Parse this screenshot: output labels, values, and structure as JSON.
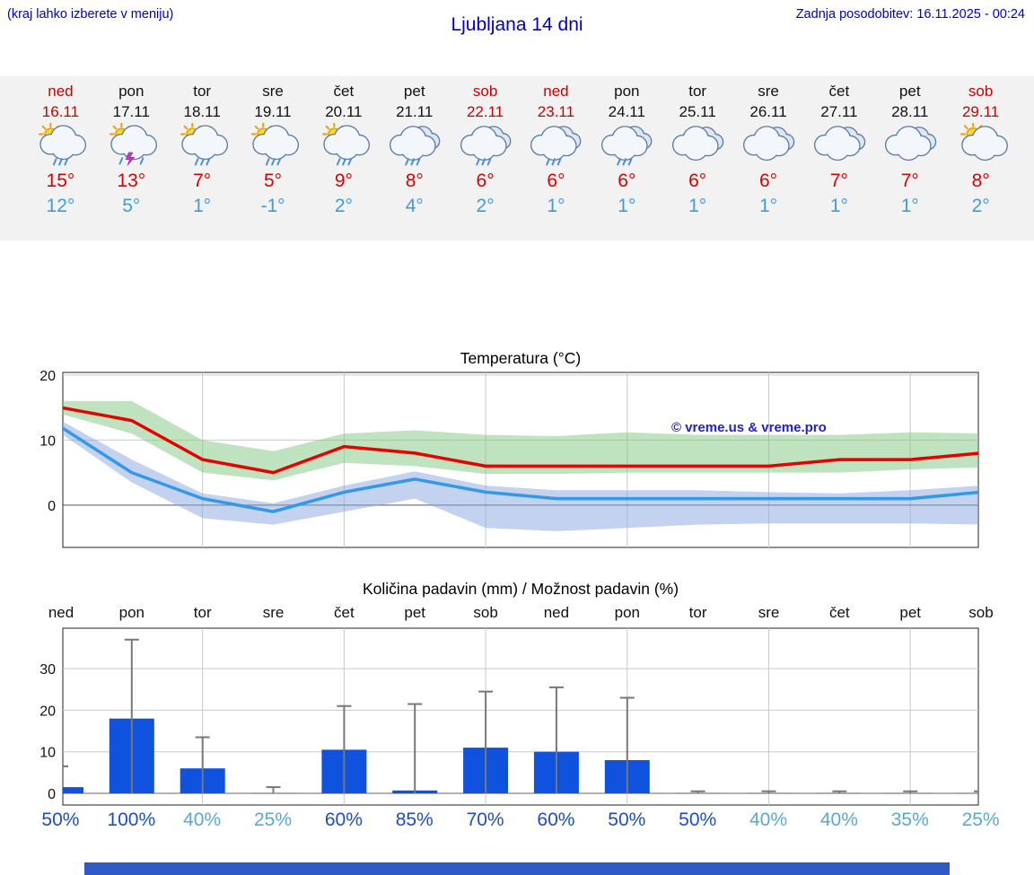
{
  "header": {
    "left_note": "(kraj lahko izberete v meniju)",
    "title": "Ljubljana 14 dni",
    "last_update": "Zadnja posodobitev: 16.11.2025 - 00:24"
  },
  "colors": {
    "header_blue": "#0000cc",
    "weekend_red": "#cc0000",
    "weekday_text": "#111111",
    "high_red": "#dd0000",
    "low_blue": "#3e9be0",
    "prob_high": "#1c4fc4",
    "prob_low": "#58a8d8",
    "bar_blue": "#0f52dd",
    "temp_max_line": "#e60000",
    "temp_min_line": "#3399e6",
    "footer_blue": "#2e5ac8"
  },
  "days": [
    {
      "name": "ned",
      "date": "16.11",
      "weekend": true,
      "icon": "sun-rain",
      "high": "15°",
      "low": "12°"
    },
    {
      "name": "pon",
      "date": "17.11",
      "weekend": false,
      "icon": "sun-storm",
      "high": "13°",
      "low": "5°"
    },
    {
      "name": "tor",
      "date": "18.11",
      "weekend": false,
      "icon": "sun-rain",
      "high": "7°",
      "low": "1°"
    },
    {
      "name": "sre",
      "date": "19.11",
      "weekend": false,
      "icon": "sun-rain",
      "high": "5°",
      "low": "-1°"
    },
    {
      "name": "čet",
      "date": "20.11",
      "weekend": false,
      "icon": "sun-rain",
      "high": "9°",
      "low": "2°"
    },
    {
      "name": "pet",
      "date": "21.11",
      "weekend": false,
      "icon": "cloud-rain",
      "high": "8°",
      "low": "4°"
    },
    {
      "name": "sob",
      "date": "22.11",
      "weekend": true,
      "icon": "cloud-rain",
      "high": "6°",
      "low": "2°"
    },
    {
      "name": "ned",
      "date": "23.11",
      "weekend": true,
      "icon": "cloud-rain",
      "high": "6°",
      "low": "1°"
    },
    {
      "name": "pon",
      "date": "24.11",
      "weekend": false,
      "icon": "cloud-rain",
      "high": "6°",
      "low": "1°"
    },
    {
      "name": "tor",
      "date": "25.11",
      "weekend": false,
      "icon": "cloud",
      "high": "6°",
      "low": "1°"
    },
    {
      "name": "sre",
      "date": "26.11",
      "weekend": false,
      "icon": "cloud",
      "high": "6°",
      "low": "1°"
    },
    {
      "name": "čet",
      "date": "27.11",
      "weekend": false,
      "icon": "cloud",
      "high": "7°",
      "low": "1°"
    },
    {
      "name": "pet",
      "date": "28.11",
      "weekend": false,
      "icon": "cloud",
      "high": "7°",
      "low": "1°"
    },
    {
      "name": "sob",
      "date": "29.11",
      "weekend": true,
      "icon": "sun-cloud",
      "high": "8°",
      "low": "2°"
    }
  ],
  "chart_data": [
    {
      "type": "line",
      "title": "Temperatura (°C)",
      "categories": [
        "ned",
        "pon",
        "tor",
        "sre",
        "čet",
        "pet",
        "sob",
        "ned",
        "pon",
        "tor",
        "sre",
        "čet",
        "pet",
        "sob"
      ],
      "series": [
        {
          "name": "max-temperature",
          "color": "#e60000",
          "values": [
            15,
            13,
            7,
            5,
            9,
            8,
            6,
            6,
            6,
            6,
            6,
            7,
            7,
            8
          ]
        },
        {
          "name": "min-temperature",
          "color": "#3399e6",
          "values": [
            12,
            5,
            1,
            -1,
            2,
            4,
            2,
            1,
            1,
            1,
            1,
            1,
            1,
            2
          ]
        }
      ],
      "bands": [
        {
          "name": "max-temperature-range",
          "color": "#7ec87e",
          "upper": [
            16,
            16,
            10,
            8.3,
            11,
            11.5,
            10.8,
            10.6,
            11.2,
            10.8,
            10.8,
            10.8,
            11.2,
            11
          ],
          "lower": [
            14,
            11,
            5,
            3.8,
            6.5,
            6,
            4.8,
            4.8,
            5,
            5,
            5,
            5,
            5.5,
            5.8
          ]
        },
        {
          "name": "min-temperature-range",
          "color": "#88a8e0",
          "upper": [
            13,
            7,
            1.8,
            0.3,
            3,
            5.2,
            3,
            2.3,
            2.3,
            2.3,
            2,
            1.8,
            2.3,
            3
          ],
          "lower": [
            11,
            3.5,
            -2,
            -3,
            -1,
            1,
            -3.5,
            -4,
            -3.5,
            -3,
            -2.8,
            -2.8,
            -2.8,
            -3
          ]
        }
      ],
      "ylim": [
        -6.5,
        20.4
      ],
      "yticks": [
        0,
        10,
        20
      ],
      "grid": true,
      "watermark": "© vreme.us & vreme.pro"
    },
    {
      "type": "bar",
      "title": "Količina padavin (mm) / Možnost padavin (%)",
      "categories": [
        "ned",
        "pon",
        "tor",
        "sre",
        "čet",
        "pet",
        "sob",
        "ned",
        "pon",
        "tor",
        "sre",
        "čet",
        "pet",
        "sob"
      ],
      "values": [
        1.5,
        18,
        6,
        0.1,
        10.5,
        0.7,
        11,
        10,
        8,
        0.1,
        0.1,
        0.1,
        0.1,
        0.1
      ],
      "whisker_high": [
        6.5,
        37,
        13.5,
        1.5,
        21,
        21.5,
        24.5,
        25.5,
        23,
        0.5,
        0.5,
        0.5,
        0.5,
        0.5
      ],
      "ylim": [
        0,
        40
      ],
      "yticks": [
        0,
        10,
        20,
        30
      ],
      "grid": true,
      "bar_color": "#0f52dd"
    }
  ],
  "precip_prob": [
    {
      "value": "50%",
      "emph": true
    },
    {
      "value": "100%",
      "emph": true
    },
    {
      "value": "40%",
      "emph": false
    },
    {
      "value": "25%",
      "emph": false
    },
    {
      "value": "60%",
      "emph": true
    },
    {
      "value": "85%",
      "emph": true
    },
    {
      "value": "70%",
      "emph": true
    },
    {
      "value": "60%",
      "emph": true
    },
    {
      "value": "50%",
      "emph": true
    },
    {
      "value": "50%",
      "emph": true
    },
    {
      "value": "40%",
      "emph": false
    },
    {
      "value": "40%",
      "emph": false
    },
    {
      "value": "35%",
      "emph": false
    },
    {
      "value": "25%",
      "emph": false
    }
  ]
}
